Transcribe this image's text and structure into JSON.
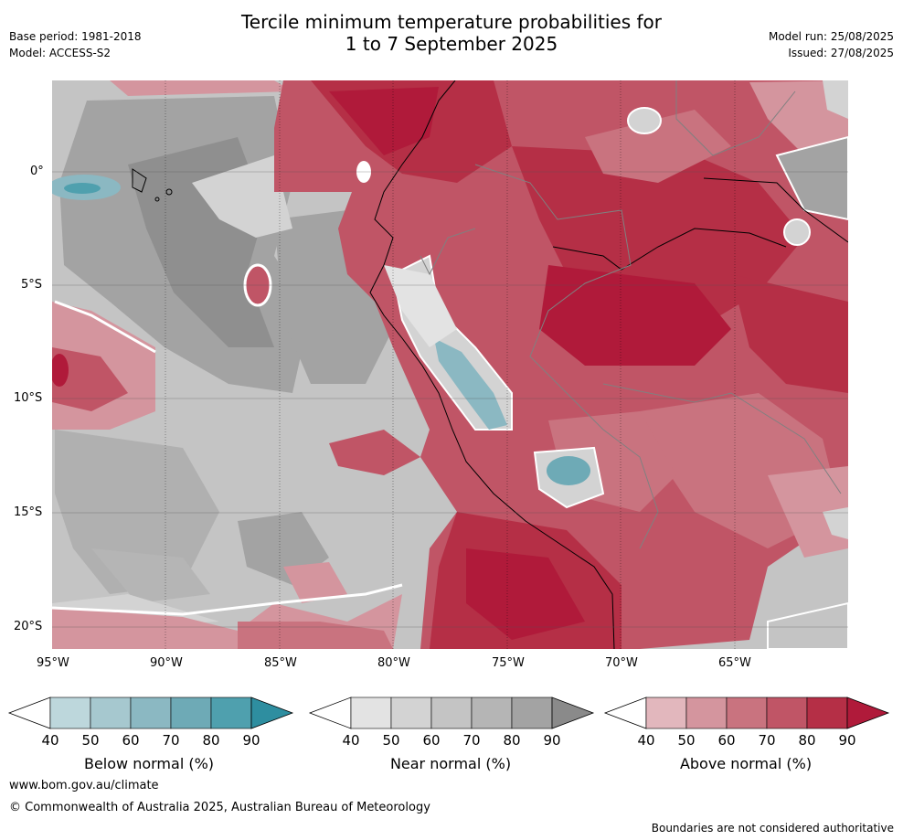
{
  "header": {
    "title_line1": "Tercile minimum temperature probabilities for",
    "title_line2": "1 to 7 September 2025",
    "base_period": "Base period: 1981-2018",
    "model": "Model: ACCESS-S2",
    "model_run": "Model run: 25/08/2025",
    "issued": "Issued: 27/08/2025"
  },
  "map": {
    "lon_ticks": [
      "95°W",
      "90°W",
      "85°W",
      "80°W",
      "75°W",
      "70°W",
      "65°W"
    ],
    "lat_ticks": [
      "0°",
      "5°S",
      "10°S",
      "15°S",
      "20°S"
    ]
  },
  "colorbars": [
    {
      "label": "Below normal (%)",
      "ticks": [
        "40",
        "50",
        "60",
        "70",
        "80",
        "90"
      ],
      "colors": [
        "#bdd7dc",
        "#a6c8cf",
        "#8bb8c2",
        "#6eaab6",
        "#4fa0ae",
        "#2e8ea0"
      ]
    },
    {
      "label": "Near normal (%)",
      "ticks": [
        "40",
        "50",
        "60",
        "70",
        "80",
        "90"
      ],
      "colors": [
        "#e3e3e3",
        "#d3d3d3",
        "#c4c4c4",
        "#b5b5b5",
        "#a3a3a3",
        "#8a8a8a"
      ]
    },
    {
      "label": "Above normal (%)",
      "ticks": [
        "40",
        "50",
        "60",
        "70",
        "80",
        "90"
      ],
      "colors": [
        "#e2b7bd",
        "#d4959e",
        "#c9737f",
        "#c05566",
        "#b52f46",
        "#b01a3a"
      ]
    }
  ],
  "footer": {
    "url": "www.bom.gov.au/climate",
    "copyright": "© Commonwealth of Australia 2025, Australian Bureau of Meteorology",
    "disclaimer": "Boundaries are not considered authoritative"
  }
}
